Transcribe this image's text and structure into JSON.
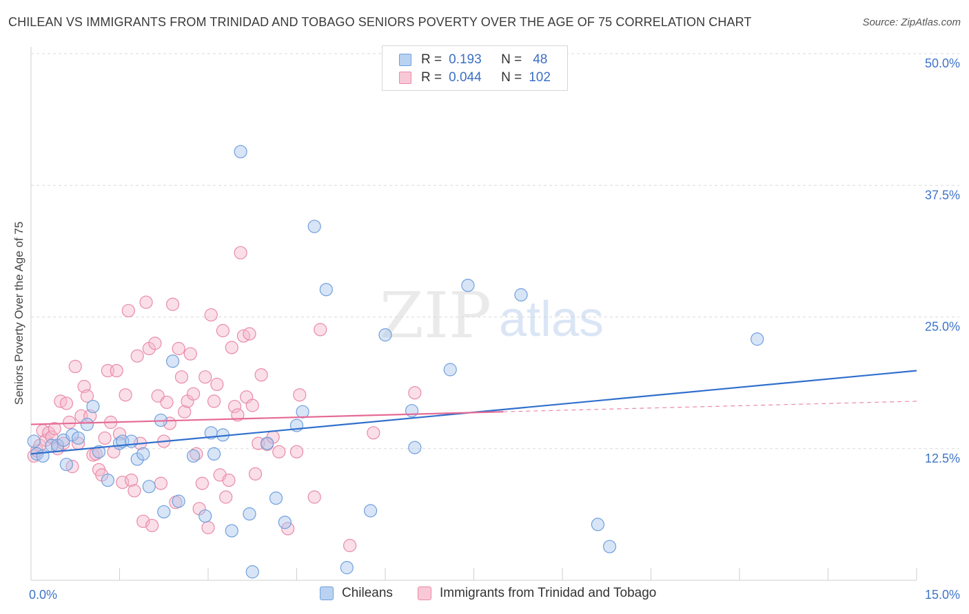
{
  "header": {
    "title": "CHILEAN VS IMMIGRANTS FROM TRINIDAD AND TOBAGO SENIORS POVERTY OVER THE AGE OF 75 CORRELATION CHART",
    "source": "Source: ZipAtlas.com"
  },
  "watermark": {
    "zip": "ZIP",
    "atlas": "atlas"
  },
  "legend": {
    "r_label": "R =",
    "n_label": "N =",
    "series": [
      {
        "r": "0.193",
        "n": "48"
      },
      {
        "r": "0.044",
        "n": "102"
      }
    ]
  },
  "colors": {
    "blue_fill": "#a9c6ee",
    "blue_stroke": "#6f9fdc",
    "blue_line": "#2f6fcc",
    "pink_fill": "#f5b8cc",
    "pink_stroke": "#e98aa8",
    "pink_line": "#e56a95",
    "grid": "#d9d9d9",
    "tick_text": "#3f74c8"
  },
  "chart_data": {
    "type": "scatter",
    "ylabel": "Seniors Poverty Over the Age of 75",
    "xlim": [
      0,
      15
    ],
    "ylim": [
      0,
      50
    ],
    "x_tick_labels": [
      {
        "value": 0,
        "label": "0.0%"
      },
      {
        "value": 15,
        "label": "15.0%"
      }
    ],
    "y_tick_labels": [
      {
        "value": 12.5,
        "label": "12.5%"
      },
      {
        "value": 25,
        "label": "25.0%"
      },
      {
        "value": 37.5,
        "label": "37.5%"
      },
      {
        "value": 50,
        "label": "50.0%"
      }
    ],
    "grid": true,
    "legend_position": "top-center",
    "series": [
      {
        "name": "Chileans",
        "trend": {
          "x0": 0,
          "y0": 12.0,
          "x1": 15,
          "y1": 19.9
        },
        "points": [
          [
            0.05,
            13.2
          ],
          [
            0.1,
            12.0
          ],
          [
            0.2,
            11.8
          ],
          [
            0.35,
            12.8
          ],
          [
            0.45,
            12.8
          ],
          [
            0.55,
            13.3
          ],
          [
            0.6,
            11.0
          ],
          [
            0.7,
            13.8
          ],
          [
            0.8,
            13.5
          ],
          [
            0.95,
            14.8
          ],
          [
            1.05,
            16.5
          ],
          [
            1.15,
            12.2
          ],
          [
            1.3,
            9.5
          ],
          [
            1.5,
            13.0
          ],
          [
            1.55,
            13.2
          ],
          [
            1.7,
            13.2
          ],
          [
            1.8,
            11.5
          ],
          [
            1.9,
            12.0
          ],
          [
            2.0,
            8.9
          ],
          [
            2.2,
            15.2
          ],
          [
            2.25,
            6.5
          ],
          [
            2.4,
            20.8
          ],
          [
            2.5,
            7.5
          ],
          [
            2.75,
            11.8
          ],
          [
            2.95,
            6.1
          ],
          [
            3.05,
            14.0
          ],
          [
            3.1,
            12.0
          ],
          [
            3.25,
            13.8
          ],
          [
            3.4,
            4.7
          ],
          [
            3.55,
            40.7
          ],
          [
            3.7,
            6.3
          ],
          [
            3.75,
            0.8
          ],
          [
            4.0,
            13.0
          ],
          [
            4.15,
            7.8
          ],
          [
            4.3,
            5.5
          ],
          [
            4.5,
            14.7
          ],
          [
            4.6,
            16.0
          ],
          [
            4.8,
            33.6
          ],
          [
            5.0,
            27.6
          ],
          [
            5.35,
            1.2
          ],
          [
            5.75,
            6.6
          ],
          [
            6.0,
            23.3
          ],
          [
            6.45,
            16.1
          ],
          [
            6.5,
            12.6
          ],
          [
            7.1,
            20.0
          ],
          [
            7.4,
            28.0
          ],
          [
            8.3,
            27.1
          ],
          [
            9.6,
            5.3
          ],
          [
            9.8,
            3.2
          ],
          [
            12.3,
            22.9
          ]
        ]
      },
      {
        "name": "Immigrants from Trinidad and Tobago",
        "trend": {
          "x0": 0,
          "y0": 14.8,
          "x1": 8.0,
          "y1": 16.0,
          "dash_x1": 15,
          "dash_y1": 17.0
        },
        "points": [
          [
            0.05,
            11.8
          ],
          [
            0.1,
            12.3
          ],
          [
            0.15,
            12.8
          ],
          [
            0.2,
            14.2
          ],
          [
            0.25,
            13.3
          ],
          [
            0.3,
            14.0
          ],
          [
            0.35,
            13.6
          ],
          [
            0.4,
            14.4
          ],
          [
            0.45,
            12.5
          ],
          [
            0.5,
            17.0
          ],
          [
            0.55,
            13.0
          ],
          [
            0.6,
            16.8
          ],
          [
            0.65,
            15.0
          ],
          [
            0.7,
            10.8
          ],
          [
            0.75,
            20.3
          ],
          [
            0.8,
            13.0
          ],
          [
            0.85,
            15.6
          ],
          [
            0.9,
            18.4
          ],
          [
            0.95,
            17.5
          ],
          [
            1.0,
            15.6
          ],
          [
            1.05,
            11.9
          ],
          [
            1.1,
            12.0
          ],
          [
            1.15,
            10.5
          ],
          [
            1.2,
            10.0
          ],
          [
            1.25,
            13.5
          ],
          [
            1.3,
            19.9
          ],
          [
            1.35,
            15.0
          ],
          [
            1.4,
            12.2
          ],
          [
            1.45,
            19.9
          ],
          [
            1.5,
            13.9
          ],
          [
            1.55,
            9.3
          ],
          [
            1.6,
            17.6
          ],
          [
            1.65,
            25.6
          ],
          [
            1.7,
            9.5
          ],
          [
            1.75,
            8.5
          ],
          [
            1.8,
            21.3
          ],
          [
            1.85,
            13.0
          ],
          [
            1.9,
            5.6
          ],
          [
            1.95,
            26.4
          ],
          [
            2.0,
            22.0
          ],
          [
            2.05,
            5.2
          ],
          [
            2.1,
            22.5
          ],
          [
            2.15,
            17.5
          ],
          [
            2.2,
            9.2
          ],
          [
            2.25,
            13.2
          ],
          [
            2.3,
            16.9
          ],
          [
            2.35,
            14.9
          ],
          [
            2.4,
            26.2
          ],
          [
            2.45,
            7.4
          ],
          [
            2.5,
            22.0
          ],
          [
            2.55,
            19.3
          ],
          [
            2.6,
            16.0
          ],
          [
            2.65,
            17.0
          ],
          [
            2.7,
            21.5
          ],
          [
            2.75,
            17.7
          ],
          [
            2.8,
            12.0
          ],
          [
            2.85,
            6.8
          ],
          [
            2.9,
            9.2
          ],
          [
            2.95,
            19.3
          ],
          [
            3.0,
            5.0
          ],
          [
            3.05,
            25.2
          ],
          [
            3.1,
            17.0
          ],
          [
            3.15,
            18.6
          ],
          [
            3.2,
            10.0
          ],
          [
            3.25,
            23.7
          ],
          [
            3.3,
            7.9
          ],
          [
            3.35,
            9.5
          ],
          [
            3.4,
            22.1
          ],
          [
            3.45,
            16.5
          ],
          [
            3.5,
            15.7
          ],
          [
            3.55,
            31.1
          ],
          [
            3.6,
            23.2
          ],
          [
            3.65,
            17.4
          ],
          [
            3.7,
            23.4
          ],
          [
            3.75,
            16.6
          ],
          [
            3.8,
            10.1
          ],
          [
            3.85,
            13.0
          ],
          [
            3.9,
            19.5
          ],
          [
            4.0,
            12.9
          ],
          [
            4.1,
            13.6
          ],
          [
            4.2,
            12.2
          ],
          [
            4.35,
            4.9
          ],
          [
            4.5,
            12.2
          ],
          [
            4.55,
            17.6
          ],
          [
            4.8,
            7.9
          ],
          [
            4.9,
            23.8
          ],
          [
            5.4,
            3.3
          ],
          [
            5.8,
            14.0
          ],
          [
            6.5,
            17.8
          ]
        ]
      }
    ]
  },
  "bottom_legend": {
    "items": [
      {
        "label": "Chileans"
      },
      {
        "label": "Immigrants from Trinidad and Tobago"
      }
    ]
  }
}
